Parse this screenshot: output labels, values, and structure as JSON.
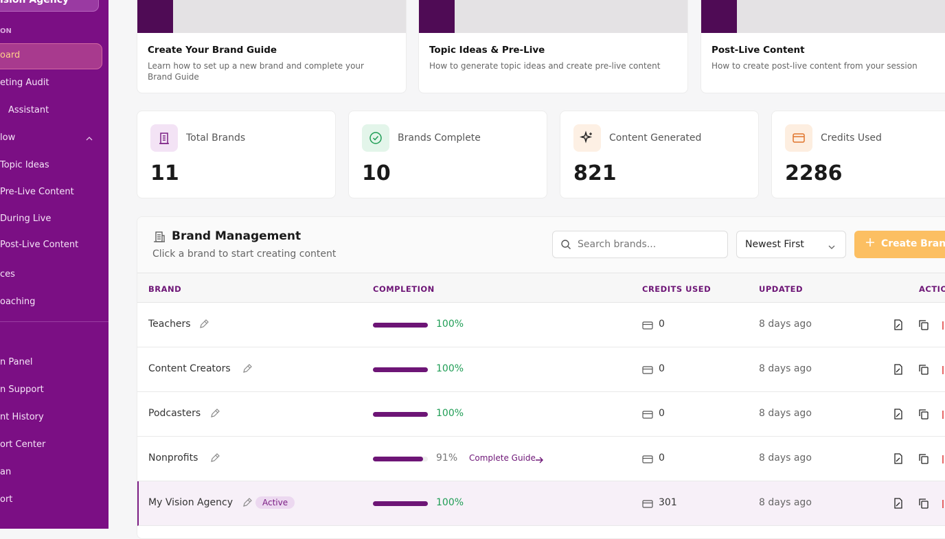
{
  "sidebar": {
    "workspace": "ision Agency",
    "section": "ON",
    "items": [
      "oard",
      "eting Audit",
      "Assistant",
      "low",
      "Topic Ideas",
      "Pre-Live Content",
      "During Live",
      "Post-Live Content",
      "ces",
      "oaching",
      "n Panel",
      "n Support",
      "nt History",
      "ort Center",
      "an",
      "ort"
    ]
  },
  "tutorials": [
    {
      "title": "Create Your Brand Guide",
      "description": "Learn how to set up a new brand and complete your Brand Guide"
    },
    {
      "title": "Topic Ideas & Pre-Live",
      "description": "How to generate topic ideas and create pre-live content"
    },
    {
      "title": "Post-Live Content",
      "description": "How to create post-live content from your session"
    }
  ],
  "stats": [
    {
      "label": "Total Brands",
      "value": 11
    },
    {
      "label": "Brands Complete",
      "value": 10
    },
    {
      "label": "Content Generated",
      "value": 821
    },
    {
      "label": "Credits Used",
      "value": 2286
    }
  ],
  "brand_management": {
    "title": "Brand Management",
    "subtitle": "Click a brand to start creating content",
    "search_placeholder": "Search brands...",
    "sort": "Newest First",
    "create_button": "Create Brand",
    "columns": [
      "BRAND",
      "COMPLETION",
      "CREDITS USED",
      "UPDATED",
      "ACTIO"
    ],
    "rows": [
      {
        "name": "Teachers",
        "completion": 100,
        "completion_label": "100%",
        "credits": 0,
        "updated": "8 days ago"
      },
      {
        "name": "Content Creators",
        "completion": 100,
        "completion_label": "100%",
        "credits": 0,
        "updated": "8 days ago"
      },
      {
        "name": "Podcasters",
        "completion": 100,
        "completion_label": "100%",
        "credits": 0,
        "updated": "8 days ago"
      },
      {
        "name": "Nonprofits",
        "completion": 91,
        "completion_label": "91%",
        "link": "Complete Guide",
        "credits": 0,
        "updated": "8 days ago"
      },
      {
        "name": "My Vision Agency",
        "badge": "Active",
        "completion": 100,
        "completion_label": "100%",
        "credits": 301,
        "updated": "8 days ago"
      }
    ]
  }
}
